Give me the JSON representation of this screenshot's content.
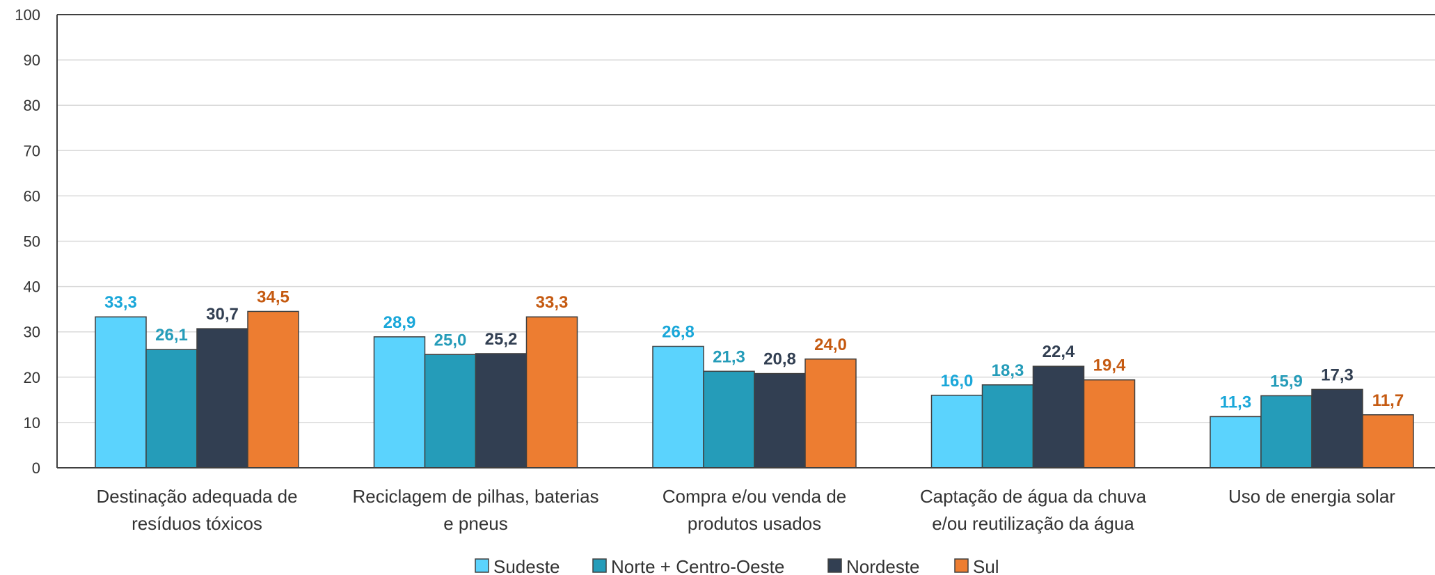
{
  "chart_data": {
    "type": "bar",
    "title": "",
    "xlabel": "",
    "ylabel": "",
    "ylim": [
      0,
      100
    ],
    "yticks": [
      "0",
      "10",
      "20",
      "30",
      "40",
      "50",
      "60",
      "70",
      "80",
      "90",
      "100"
    ],
    "grid": true,
    "legend_position": "bottom",
    "categories": [
      [
        "Destinação adequada de",
        "resíduos tóxicos"
      ],
      [
        "Reciclagem de pilhas, baterias",
        "e pneus"
      ],
      [
        "Compra e/ou venda de",
        "produtos usados"
      ],
      [
        "Captação de água da chuva",
        "e/ou reutilização da água"
      ],
      [
        "Uso de energia solar"
      ]
    ],
    "series": [
      {
        "name": "Sudeste",
        "color": "#5BD3FD",
        "label_color": "#1AA7D9",
        "values": [
          33.3,
          28.9,
          26.8,
          16.0,
          11.3
        ],
        "labels": [
          "33,3",
          "28,9",
          "26,8",
          "16,0",
          "11,3"
        ]
      },
      {
        "name": "Norte + Centro-Oeste",
        "color": "#259CB9",
        "label_color": "#259CB9",
        "values": [
          26.1,
          25.0,
          21.3,
          18.3,
          15.9
        ],
        "labels": [
          "26,1",
          "25,0",
          "21,3",
          "18,3",
          "15,9"
        ]
      },
      {
        "name": "Nordeste",
        "color": "#323F52",
        "label_color": "#323F52",
        "values": [
          30.7,
          25.2,
          20.8,
          22.4,
          17.3
        ],
        "labels": [
          "30,7",
          "25,2",
          "20,8",
          "22,4",
          "17,3"
        ]
      },
      {
        "name": "Sul",
        "color": "#ED7D31",
        "label_color": "#C55A11",
        "values": [
          34.5,
          33.3,
          24.0,
          19.4,
          11.7
        ],
        "labels": [
          "34,5",
          "33,3",
          "24,0",
          "19,4",
          "11,7"
        ]
      }
    ]
  }
}
